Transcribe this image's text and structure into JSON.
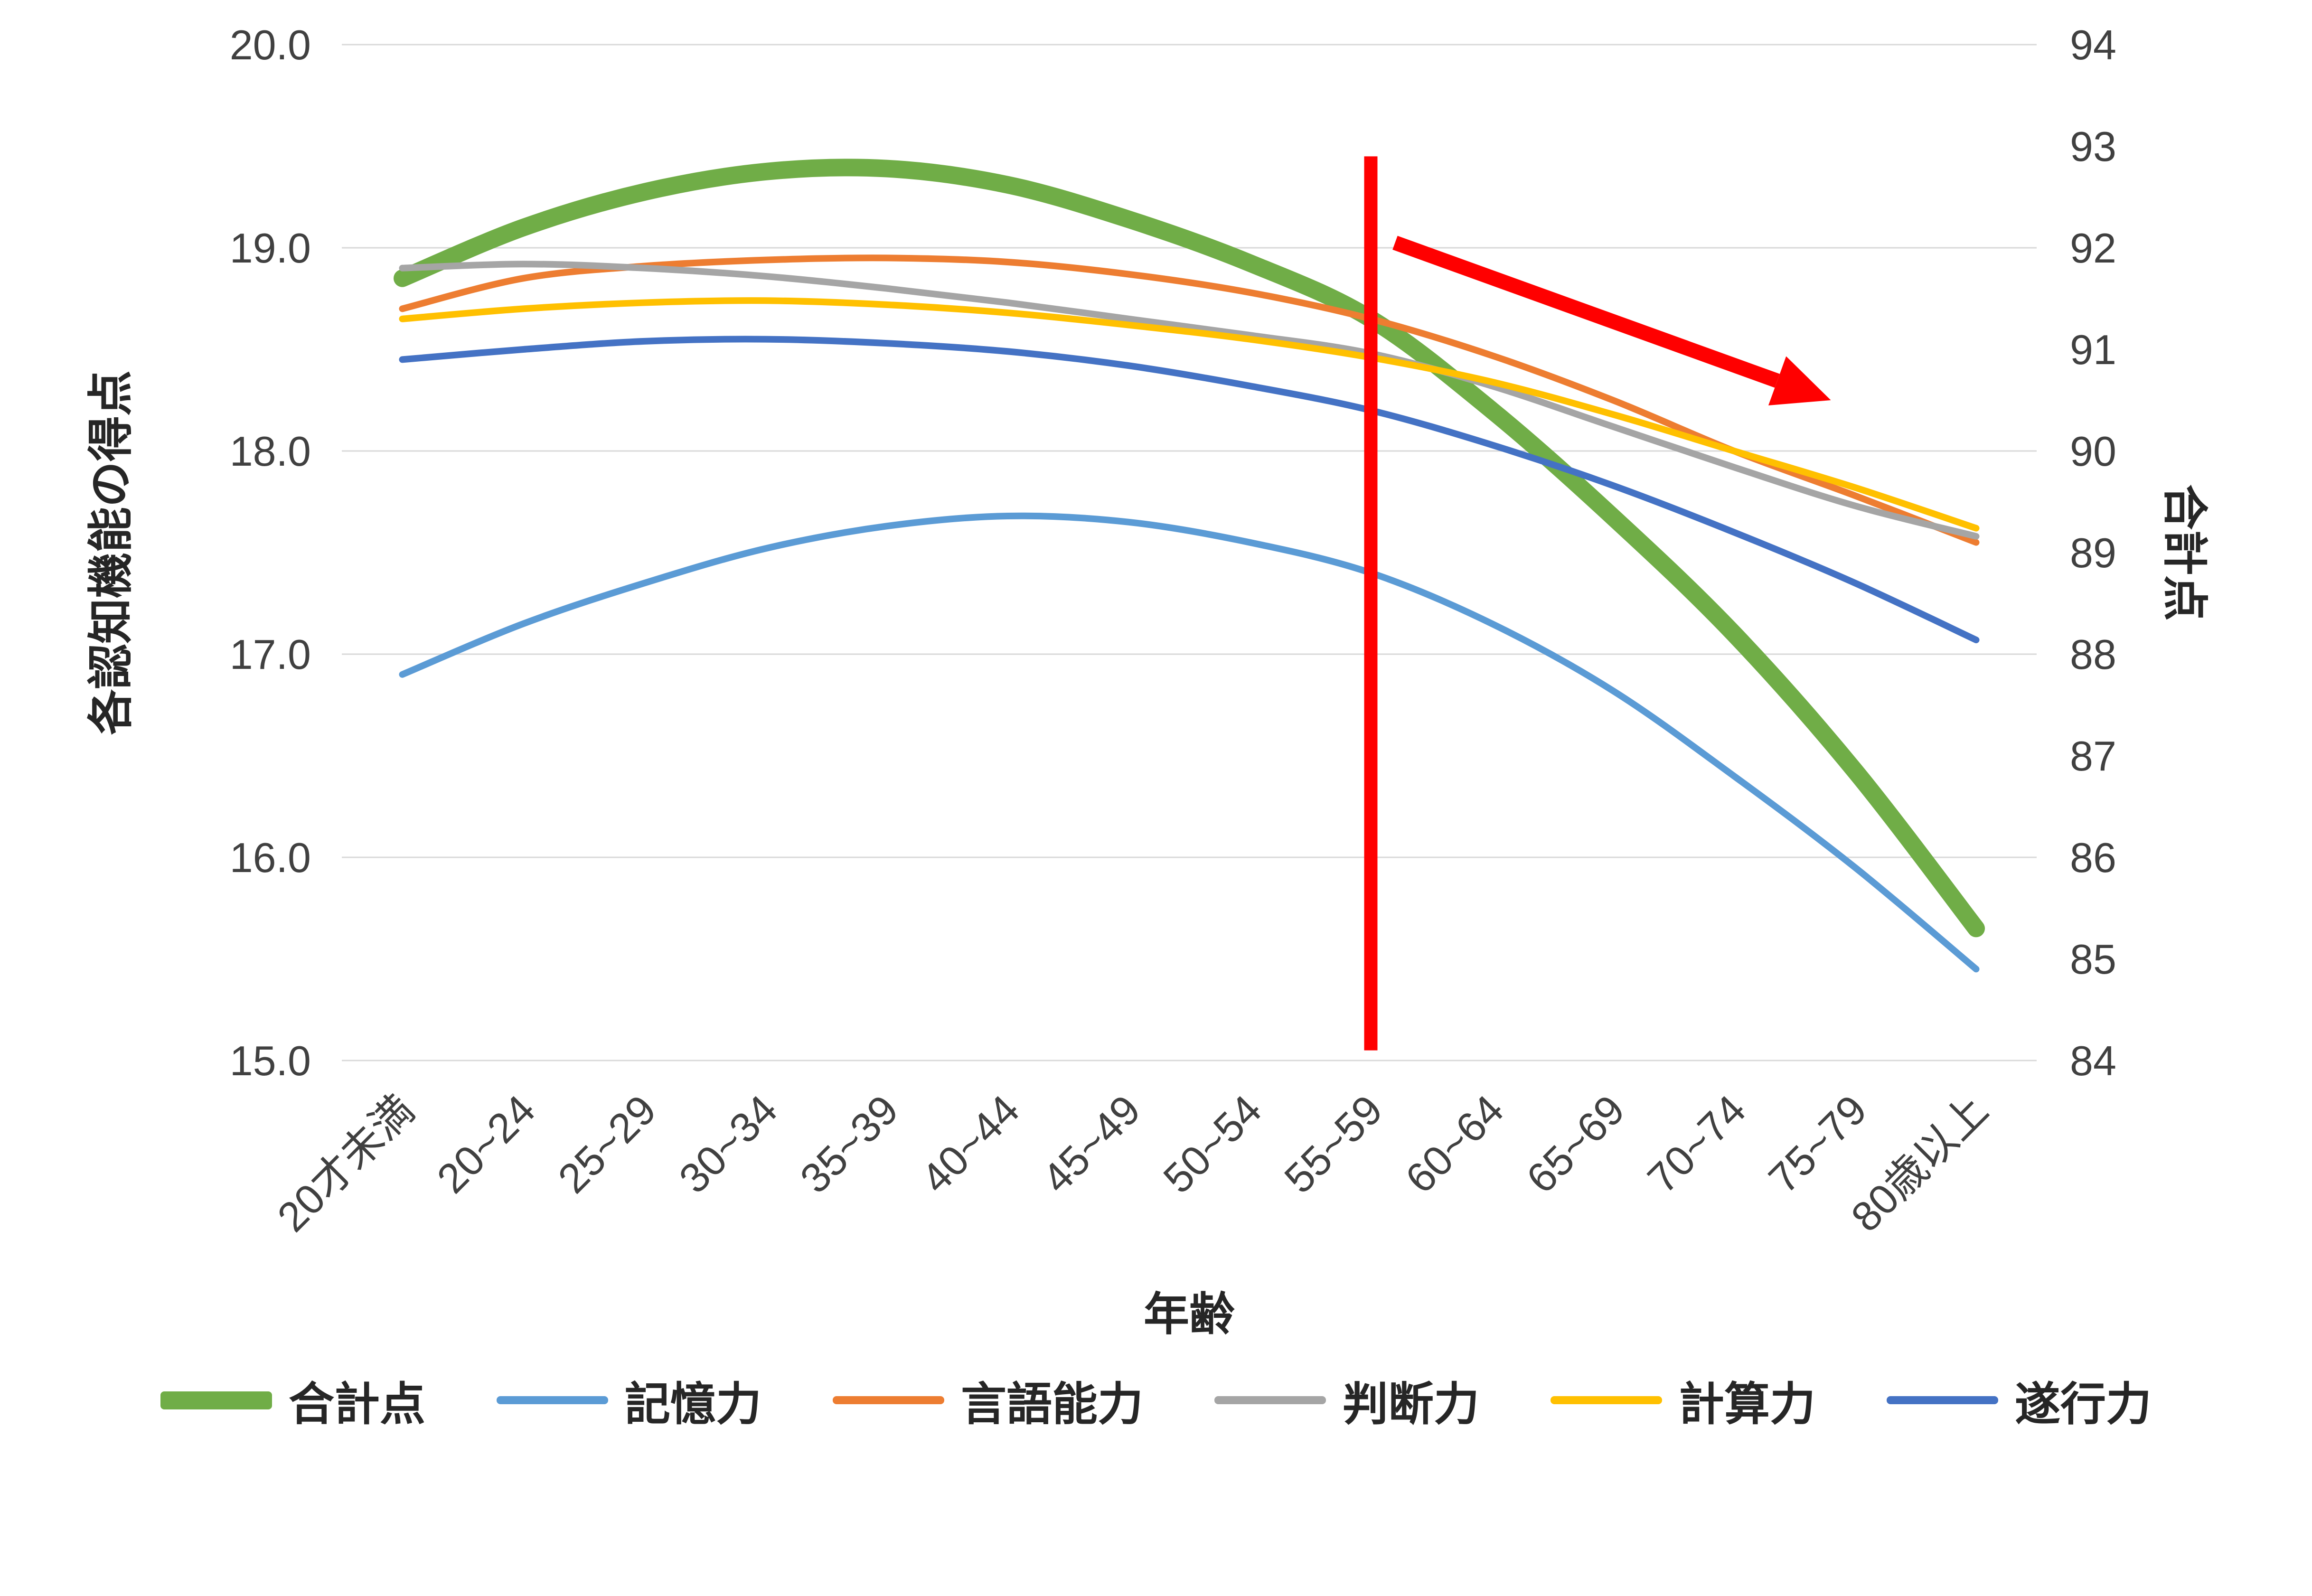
{
  "chart_data": {
    "type": "line",
    "categories": [
      "20才未満",
      "20~24",
      "25~29",
      "30~34",
      "35~39",
      "40~44",
      "45~49",
      "50~54",
      "55~59",
      "60~64",
      "65~69",
      "70~74",
      "75~79",
      "80歳以上"
    ],
    "x_axis_title": "年齢",
    "left_axis": {
      "title": "各認知機能の得点",
      "min": 15.0,
      "max": 20.0,
      "ticks": [
        "20.0",
        "19.0",
        "18.0",
        "17.0",
        "16.0",
        "15.0"
      ]
    },
    "right_axis": {
      "title": "合計点",
      "min": 84,
      "max": 94,
      "ticks": [
        "94",
        "93",
        "92",
        "91",
        "90",
        "89",
        "88",
        "87",
        "86",
        "85",
        "84"
      ]
    },
    "grid_color": "#D9D9D9",
    "series": [
      {
        "name": "合計点",
        "axis": "right",
        "color": "#70AD47",
        "stroke_width": 37,
        "values": [
          91.7,
          92.2,
          92.55,
          92.75,
          92.78,
          92.62,
          92.28,
          91.85,
          91.3,
          90.4,
          89.35,
          88.2,
          86.85,
          85.3
        ]
      },
      {
        "name": "記憶力",
        "axis": "left",
        "color": "#5B9BD5",
        "stroke_width": 14,
        "values": [
          16.9,
          17.15,
          17.35,
          17.52,
          17.63,
          17.68,
          17.65,
          17.55,
          17.4,
          17.15,
          16.82,
          16.4,
          15.95,
          15.45
        ]
      },
      {
        "name": "言語能力",
        "axis": "left",
        "color": "#ED7D31",
        "stroke_width": 14,
        "values": [
          18.7,
          18.85,
          18.91,
          18.94,
          18.95,
          18.93,
          18.87,
          18.78,
          18.65,
          18.47,
          18.25,
          18.0,
          17.78,
          17.55
        ]
      },
      {
        "name": "判断力",
        "axis": "left",
        "color": "#A5A5A5",
        "stroke_width": 14,
        "values": [
          18.9,
          18.92,
          18.9,
          18.86,
          18.8,
          18.73,
          18.65,
          18.57,
          18.48,
          18.32,
          18.12,
          17.92,
          17.73,
          17.58
        ]
      },
      {
        "name": "計算力",
        "axis": "left",
        "color": "#FFC000",
        "stroke_width": 14,
        "values": [
          18.65,
          18.7,
          18.73,
          18.74,
          18.72,
          18.68,
          18.62,
          18.55,
          18.46,
          18.34,
          18.18,
          18.0,
          17.82,
          17.62
        ]
      },
      {
        "name": "遂行力",
        "axis": "left",
        "color": "#4472C4",
        "stroke_width": 14,
        "values": [
          18.45,
          18.5,
          18.54,
          18.55,
          18.53,
          18.49,
          18.42,
          18.32,
          18.2,
          18.03,
          17.83,
          17.6,
          17.35,
          17.07
        ]
      }
    ],
    "annotations": {
      "vertical_line": {
        "color": "#FF0000",
        "category_index": 8,
        "top_left_value": 19.45,
        "bottom_left_value": 15.05,
        "stroke_width": 28
      },
      "arrow": {
        "color": "#FF0000",
        "from_index": 8.2,
        "from_right_value": 92.05,
        "to_index": 11.8,
        "to_right_value": 90.5,
        "stroke_width": 31
      }
    },
    "legend_position": "bottom"
  }
}
